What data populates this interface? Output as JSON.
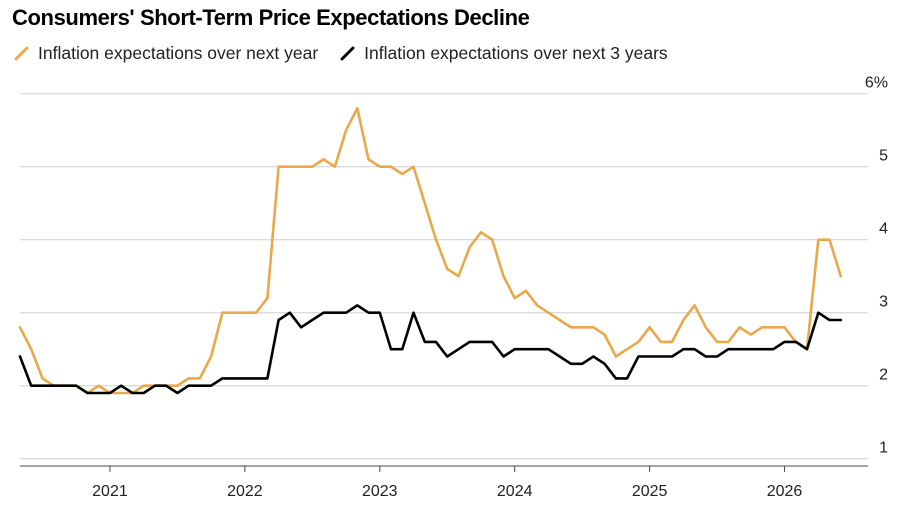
{
  "chart_data": {
    "type": "line",
    "title": "Consumers' Short-Term Price Expectations Decline",
    "xlabel": "",
    "ylabel": "",
    "ylim": [
      0.9,
      5.9
    ],
    "y_ticks": [
      "1",
      "2",
      "3",
      "4",
      "5",
      "6%"
    ],
    "y_tick_values": [
      1,
      2,
      3,
      4,
      5,
      6
    ],
    "x_ticks": [
      "2021",
      "2022",
      "2023",
      "2024",
      "2025",
      "2026"
    ],
    "x_tick_values": [
      "2021-01",
      "2022-01",
      "2023-01",
      "2024-01",
      "2025-01",
      "2026-01"
    ],
    "xlim": [
      "2020-05",
      "2026-07"
    ],
    "grid": true,
    "legend_position": "top-left",
    "series": [
      {
        "name": "Inflation expectations over next year",
        "color": "#E9A84A",
        "points": [
          [
            "2020-05",
            2.8
          ],
          [
            "2020-06",
            2.5
          ],
          [
            "2020-07",
            2.1
          ],
          [
            "2020-08",
            2.0
          ],
          [
            "2020-09",
            2.0
          ],
          [
            "2020-10",
            2.0
          ],
          [
            "2020-11",
            1.9
          ],
          [
            "2020-12",
            2.0
          ],
          [
            "2021-01",
            1.9
          ],
          [
            "2021-02",
            1.9
          ],
          [
            "2021-03",
            1.9
          ],
          [
            "2021-04",
            2.0
          ],
          [
            "2021-05",
            2.0
          ],
          [
            "2021-06",
            2.0
          ],
          [
            "2021-07",
            2.0
          ],
          [
            "2021-08",
            2.1
          ],
          [
            "2021-09",
            2.1
          ],
          [
            "2021-10",
            2.4
          ],
          [
            "2021-11",
            3.0
          ],
          [
            "2021-12",
            3.0
          ],
          [
            "2022-01",
            3.0
          ],
          [
            "2022-02",
            3.0
          ],
          [
            "2022-03",
            3.2
          ],
          [
            "2022-04",
            5.0
          ],
          [
            "2022-05",
            5.0
          ],
          [
            "2022-06",
            5.0
          ],
          [
            "2022-07",
            5.0
          ],
          [
            "2022-08",
            5.1
          ],
          [
            "2022-09",
            5.0
          ],
          [
            "2022-10",
            5.5
          ],
          [
            "2022-11",
            5.8
          ],
          [
            "2022-12",
            5.1
          ],
          [
            "2023-01",
            5.0
          ],
          [
            "2023-02",
            5.0
          ],
          [
            "2023-03",
            4.9
          ],
          [
            "2023-04",
            5.0
          ],
          [
            "2023-05",
            4.5
          ],
          [
            "2023-06",
            4.0
          ],
          [
            "2023-07",
            3.6
          ],
          [
            "2023-08",
            3.5
          ],
          [
            "2023-09",
            3.9
          ],
          [
            "2023-10",
            4.1
          ],
          [
            "2023-11",
            4.0
          ],
          [
            "2023-12",
            3.5
          ],
          [
            "2024-01",
            3.2
          ],
          [
            "2024-02",
            3.3
          ],
          [
            "2024-03",
            3.1
          ],
          [
            "2024-04",
            3.0
          ],
          [
            "2024-05",
            2.9
          ],
          [
            "2024-06",
            2.8
          ],
          [
            "2024-07",
            2.8
          ],
          [
            "2024-08",
            2.8
          ],
          [
            "2024-09",
            2.7
          ],
          [
            "2024-10",
            2.4
          ],
          [
            "2024-11",
            2.5
          ],
          [
            "2024-12",
            2.6
          ],
          [
            "2025-01",
            2.8
          ],
          [
            "2025-02",
            2.6
          ],
          [
            "2025-03",
            2.6
          ],
          [
            "2025-04",
            2.9
          ],
          [
            "2025-05",
            3.1
          ],
          [
            "2025-06",
            2.8
          ],
          [
            "2025-07",
            2.6
          ],
          [
            "2025-08",
            2.6
          ],
          [
            "2025-09",
            2.8
          ],
          [
            "2025-10",
            2.7
          ],
          [
            "2025-11",
            2.8
          ],
          [
            "2025-12",
            2.8
          ],
          [
            "2026-01",
            2.8
          ],
          [
            "2026-02",
            2.6
          ],
          [
            "2026-03",
            2.5
          ],
          [
            "2026-04",
            4.0
          ],
          [
            "2026-05",
            4.0
          ],
          [
            "2026-06",
            3.5
          ]
        ]
      },
      {
        "name": "Inflation expectations over next 3 years",
        "color": "#000000",
        "points": [
          [
            "2020-05",
            2.4
          ],
          [
            "2020-06",
            2.0
          ],
          [
            "2020-07",
            2.0
          ],
          [
            "2020-08",
            2.0
          ],
          [
            "2020-09",
            2.0
          ],
          [
            "2020-10",
            2.0
          ],
          [
            "2020-11",
            1.9
          ],
          [
            "2020-12",
            1.9
          ],
          [
            "2021-01",
            1.9
          ],
          [
            "2021-02",
            2.0
          ],
          [
            "2021-03",
            1.9
          ],
          [
            "2021-04",
            1.9
          ],
          [
            "2021-05",
            2.0
          ],
          [
            "2021-06",
            2.0
          ],
          [
            "2021-07",
            1.9
          ],
          [
            "2021-08",
            2.0
          ],
          [
            "2021-09",
            2.0
          ],
          [
            "2021-10",
            2.0
          ],
          [
            "2021-11",
            2.1
          ],
          [
            "2021-12",
            2.1
          ],
          [
            "2022-01",
            2.1
          ],
          [
            "2022-02",
            2.1
          ],
          [
            "2022-03",
            2.1
          ],
          [
            "2022-04",
            2.9
          ],
          [
            "2022-05",
            3.0
          ],
          [
            "2022-06",
            2.8
          ],
          [
            "2022-07",
            2.9
          ],
          [
            "2022-08",
            3.0
          ],
          [
            "2022-09",
            3.0
          ],
          [
            "2022-10",
            3.0
          ],
          [
            "2022-11",
            3.1
          ],
          [
            "2022-12",
            3.0
          ],
          [
            "2023-01",
            3.0
          ],
          [
            "2023-02",
            2.5
          ],
          [
            "2023-03",
            2.5
          ],
          [
            "2023-04",
            3.0
          ],
          [
            "2023-05",
            2.6
          ],
          [
            "2023-06",
            2.6
          ],
          [
            "2023-07",
            2.4
          ],
          [
            "2023-08",
            2.5
          ],
          [
            "2023-09",
            2.6
          ],
          [
            "2023-10",
            2.6
          ],
          [
            "2023-11",
            2.6
          ],
          [
            "2023-12",
            2.4
          ],
          [
            "2024-01",
            2.5
          ],
          [
            "2024-02",
            2.5
          ],
          [
            "2024-03",
            2.5
          ],
          [
            "2024-04",
            2.5
          ],
          [
            "2024-05",
            2.4
          ],
          [
            "2024-06",
            2.3
          ],
          [
            "2024-07",
            2.3
          ],
          [
            "2024-08",
            2.4
          ],
          [
            "2024-09",
            2.3
          ],
          [
            "2024-10",
            2.1
          ],
          [
            "2024-11",
            2.1
          ],
          [
            "2024-12",
            2.4
          ],
          [
            "2025-01",
            2.4
          ],
          [
            "2025-02",
            2.4
          ],
          [
            "2025-03",
            2.4
          ],
          [
            "2025-04",
            2.5
          ],
          [
            "2025-05",
            2.5
          ],
          [
            "2025-06",
            2.4
          ],
          [
            "2025-07",
            2.4
          ],
          [
            "2025-08",
            2.5
          ],
          [
            "2025-09",
            2.5
          ],
          [
            "2025-10",
            2.5
          ],
          [
            "2025-11",
            2.5
          ],
          [
            "2025-12",
            2.5
          ],
          [
            "2026-01",
            2.6
          ],
          [
            "2026-02",
            2.6
          ],
          [
            "2026-03",
            2.5
          ],
          [
            "2026-04",
            3.0
          ],
          [
            "2026-05",
            2.9
          ],
          [
            "2026-06",
            2.9
          ]
        ]
      }
    ]
  }
}
